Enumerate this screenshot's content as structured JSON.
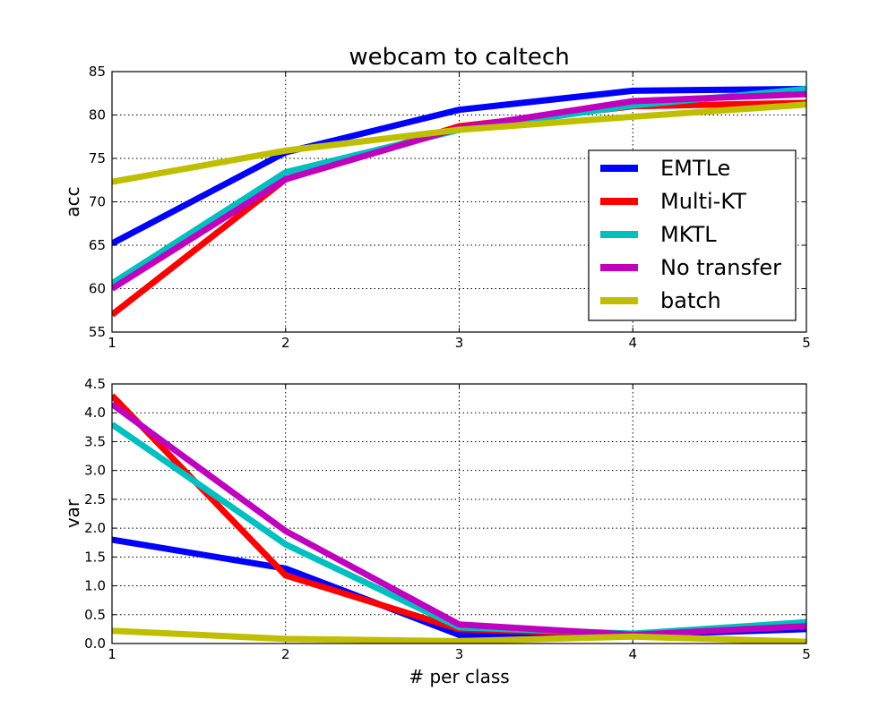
{
  "chart_data": [
    {
      "type": "line",
      "title": "webcam to caltech",
      "xlabel": "",
      "ylabel": "acc",
      "x": [
        1,
        2,
        3,
        4,
        5
      ],
      "xlim": [
        1,
        5
      ],
      "ylim": [
        55,
        85
      ],
      "xticks": [
        "1",
        "2",
        "3",
        "4",
        "5"
      ],
      "yticks": [
        "55",
        "60",
        "65",
        "70",
        "75",
        "80",
        "85"
      ],
      "grid": true,
      "legend_position": "right-center",
      "series": [
        {
          "name": "EMTLe",
          "color": "#0000ff",
          "values": [
            65.2,
            75.7,
            80.6,
            82.8,
            83.0
          ]
        },
        {
          "name": "Multi-KT",
          "color": "#ff0000",
          "values": [
            57.0,
            72.6,
            78.7,
            81.0,
            81.4
          ]
        },
        {
          "name": "MKTL",
          "color": "#00bfbf",
          "values": [
            60.6,
            73.4,
            78.3,
            81.1,
            83.0
          ]
        },
        {
          "name": "No transfer",
          "color": "#bf00bf",
          "values": [
            60.0,
            72.6,
            78.5,
            81.6,
            82.4
          ]
        },
        {
          "name": "batch",
          "color": "#bfbf00",
          "values": [
            72.3,
            75.9,
            78.3,
            79.8,
            81.2
          ]
        }
      ]
    },
    {
      "type": "line",
      "title": "",
      "xlabel": "# per class",
      "ylabel": "var",
      "x": [
        1,
        2,
        3,
        4,
        5
      ],
      "xlim": [
        1,
        5
      ],
      "ylim": [
        0,
        4.5
      ],
      "xticks": [
        "1",
        "2",
        "3",
        "4",
        "5"
      ],
      "yticks": [
        "0.0",
        "0.5",
        "1.0",
        "1.5",
        "2.0",
        "2.5",
        "3.0",
        "3.5",
        "4.0",
        "4.5"
      ],
      "grid": true,
      "series": [
        {
          "name": "EMTLe",
          "color": "#0000ff",
          "values": [
            1.8,
            1.3,
            0.15,
            0.15,
            0.25
          ]
        },
        {
          "name": "Multi-KT",
          "color": "#ff0000",
          "values": [
            4.3,
            1.18,
            0.25,
            0.15,
            0.32
          ]
        },
        {
          "name": "MKTL",
          "color": "#00bfbf",
          "values": [
            3.8,
            1.72,
            0.28,
            0.17,
            0.37
          ]
        },
        {
          "name": "No transfer",
          "color": "#bf00bf",
          "values": [
            4.15,
            1.95,
            0.33,
            0.15,
            0.3
          ]
        },
        {
          "name": "batch",
          "color": "#bfbf00",
          "values": [
            0.22,
            0.08,
            0.04,
            0.12,
            0.03
          ]
        }
      ]
    }
  ]
}
